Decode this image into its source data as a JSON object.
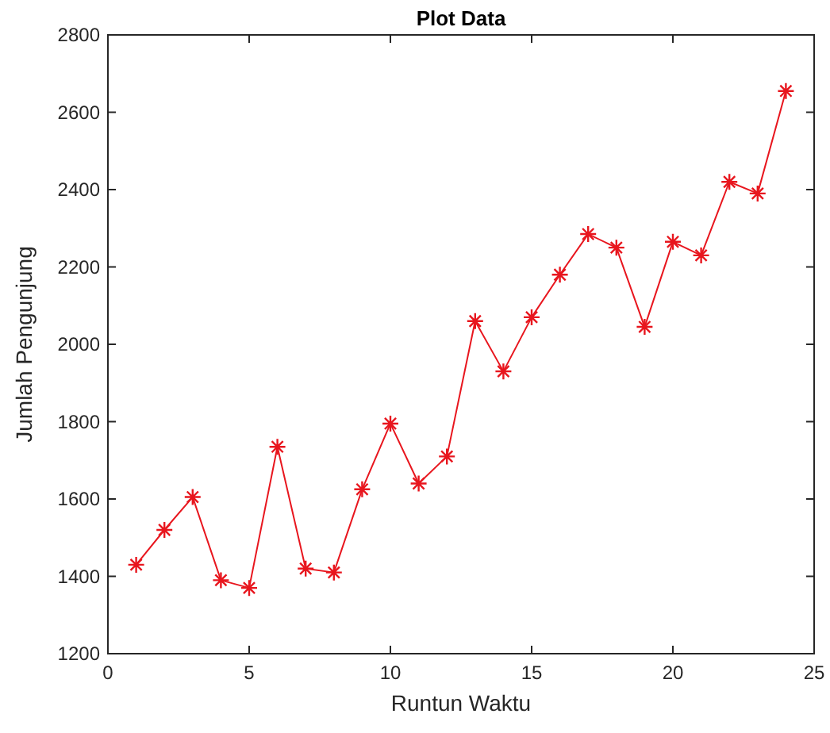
{
  "chart_data": {
    "type": "line",
    "title": "Plot Data",
    "xlabel": "Runtun Waktu",
    "ylabel": "Jumlah Pengunjung",
    "x": [
      1,
      2,
      3,
      4,
      5,
      6,
      7,
      8,
      9,
      10,
      11,
      12,
      13,
      14,
      15,
      16,
      17,
      18,
      19,
      20,
      21,
      22,
      23,
      24
    ],
    "series": [
      {
        "color": "#e8161e",
        "values": [
          1430,
          1520,
          1605,
          1390,
          1370,
          1735,
          1420,
          1410,
          1625,
          1795,
          1640,
          1710,
          2060,
          1930,
          2070,
          2180,
          2285,
          2250,
          2045,
          2265,
          2230,
          2420,
          2390,
          2655
        ]
      }
    ],
    "xlim": [
      0,
      25
    ],
    "xticks": [
      0,
      5,
      10,
      15,
      20,
      25
    ],
    "ylim": [
      1200,
      2800
    ],
    "yticks": [
      1200,
      1400,
      1600,
      1800,
      2000,
      2200,
      2400,
      2600,
      2800
    ],
    "marker": "cross",
    "line_style": "solid",
    "grid": false
  }
}
